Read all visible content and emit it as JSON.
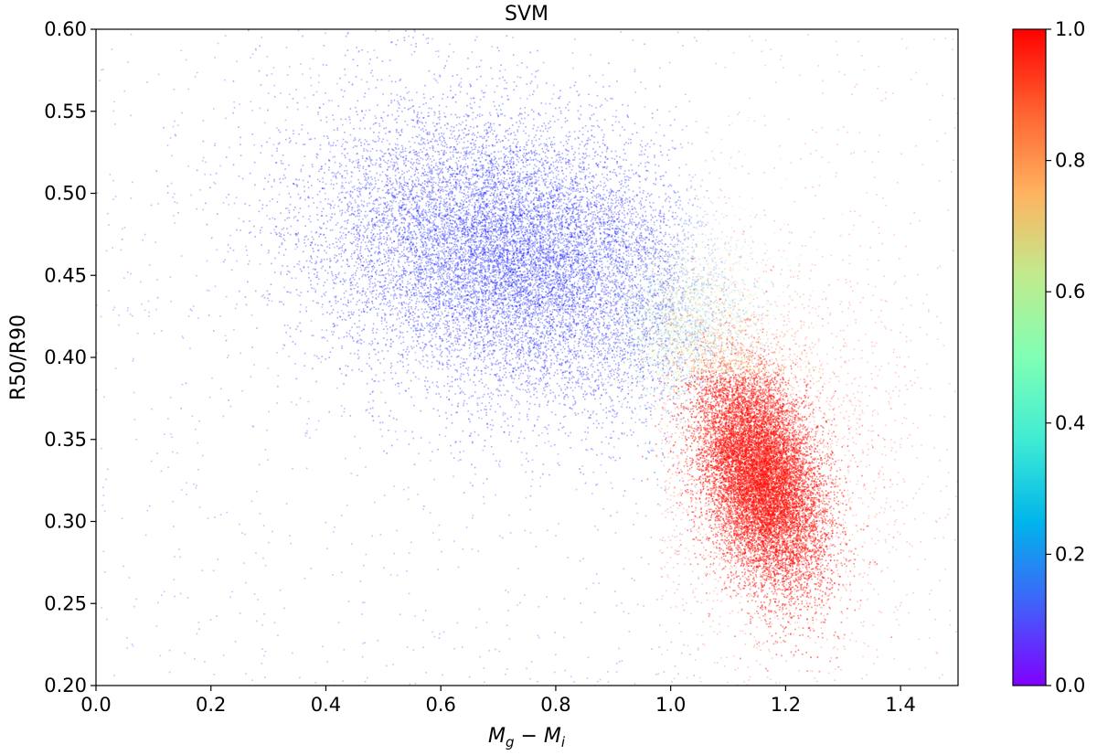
{
  "chart_data": {
    "type": "scatter",
    "title": "SVM",
    "xlabel_main": "M",
    "xlabel_sub1": "g",
    "xlabel_op": " − ",
    "xlabel_main2": "M",
    "xlabel_sub2": "i",
    "ylabel": "R50/R90",
    "xlim": [
      0.0,
      1.5
    ],
    "ylim": [
      0.2,
      0.6
    ],
    "x_ticks": [
      0.0,
      0.2,
      0.4,
      0.6,
      0.8,
      1.0,
      1.2,
      1.4
    ],
    "x_tick_labels": [
      "0.0",
      "0.2",
      "0.4",
      "0.6",
      "0.8",
      "1.0",
      "1.2",
      "1.4"
    ],
    "y_ticks": [
      0.2,
      0.25,
      0.3,
      0.35,
      0.4,
      0.45,
      0.5,
      0.55,
      0.6
    ],
    "y_tick_labels": [
      "0.20",
      "0.25",
      "0.30",
      "0.35",
      "0.40",
      "0.45",
      "0.50",
      "0.55",
      "0.60"
    ],
    "grid": false,
    "colormap": "rainbow",
    "colorbar": {
      "range": [
        0.0,
        1.0
      ],
      "ticks": [
        0.0,
        0.2,
        0.4,
        0.6,
        0.8,
        1.0
      ],
      "tick_labels": [
        "0.0",
        "0.2",
        "0.4",
        "0.6",
        "0.8",
        "1.0"
      ],
      "colors": [
        "#8000ff",
        "#4062fa",
        "#00b5eb",
        "#40ecd4",
        "#80ffb4",
        "#c0eb8d",
        "#ffb360",
        "#ff6230",
        "#ff0000"
      ]
    },
    "clusters": [
      {
        "name": "blue cloud",
        "center": [
          0.72,
          0.462
        ],
        "spread": [
          0.17,
          0.042
        ],
        "value": 0.0
      },
      {
        "name": "red sequence",
        "center": [
          1.155,
          0.328
        ],
        "spread": [
          0.055,
          0.032
        ],
        "value": 1.0
      },
      {
        "name": "transition",
        "center": [
          1.02,
          0.42
        ],
        "spread": [
          0.06,
          0.025
        ],
        "value": 0.25
      }
    ]
  }
}
